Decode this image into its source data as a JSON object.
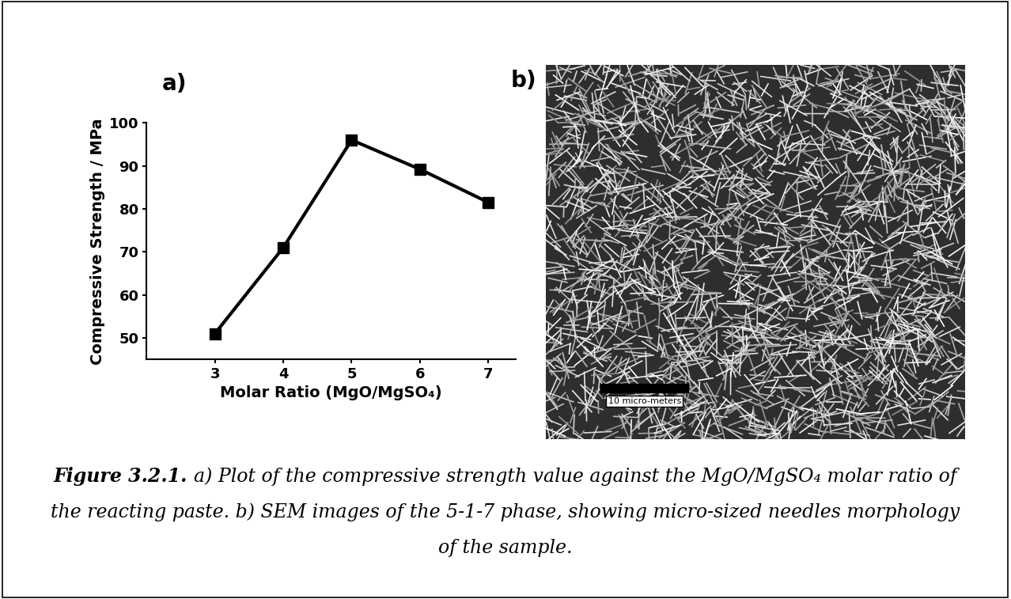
{
  "panels": [
    "a)",
    "b)"
  ],
  "chart_data": {
    "type": "line",
    "x": [
      3,
      4,
      5,
      6,
      7
    ],
    "values": [
      51,
      71,
      96,
      89.2,
      81.5
    ],
    "x_label": "Molar Ratio (MgO/MgSO₄)",
    "y_label": "Compressive Strength / MPa",
    "xlim": [
      2.0,
      7.4
    ],
    "ylim": [
      45,
      100
    ],
    "xticks": [
      3,
      4,
      5,
      6,
      7
    ],
    "yticks": [
      50,
      60,
      70,
      80,
      90,
      100
    ],
    "color": "#000000",
    "marker": "square",
    "line_style": "solid",
    "grid": false
  },
  "image": {
    "scale_bar": "10 micro-meters"
  },
  "caption": {
    "label": "Figure 3.2.1.",
    "lines": [
      "a) Plot of the compressive strength value against the MgO/MgSO₄ molar ratio of",
      "the reacting paste. b) SEM images of the 5-1-7 phase, showing micro-sized needles morphology",
      "of the sample."
    ]
  }
}
